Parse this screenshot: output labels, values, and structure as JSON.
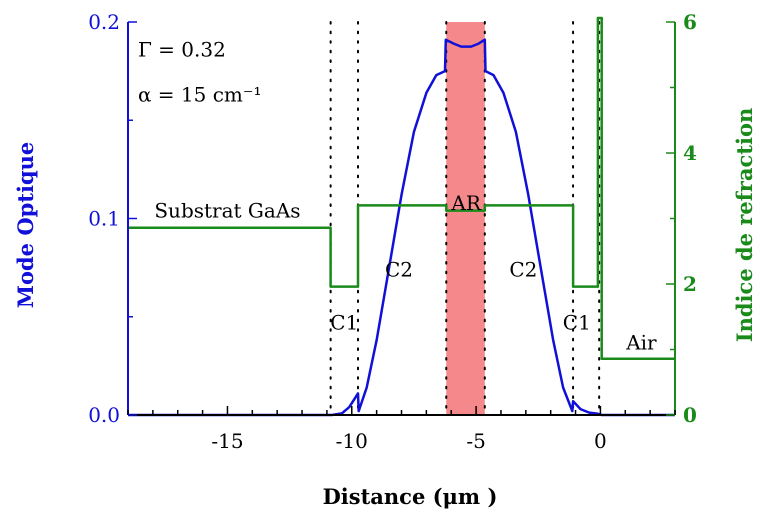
{
  "chart_data": {
    "type": "line",
    "title": "",
    "xlabel": "Distance (μm )",
    "ylabel_left": "Mode Optique",
    "ylabel_right": "Indice de refraction",
    "xlim": [
      -19,
      3
    ],
    "ylim_left": [
      0,
      0.2
    ],
    "ylim_right": [
      0,
      6
    ],
    "x_ticks": [
      {
        "value": -15,
        "label": "-15"
      },
      {
        "value": -10,
        "label": "-10"
      },
      {
        "value": -5,
        "label": "-5"
      },
      {
        "value": 0,
        "label": "0"
      }
    ],
    "y_left_ticks": [
      {
        "value": 0.0,
        "label": "0.0"
      },
      {
        "value": 0.1,
        "label": "0.1"
      },
      {
        "value": 0.2,
        "label": "0.2"
      }
    ],
    "y_right_ticks": [
      {
        "value": 0,
        "label": "0"
      },
      {
        "value": 2,
        "label": "2"
      },
      {
        "value": 4,
        "label": "4"
      },
      {
        "value": 6,
        "label": "6"
      }
    ],
    "series": [
      {
        "axis": "left",
        "color": "#1010d8",
        "points": [
          [
            -19,
            0
          ],
          [
            -12,
            0
          ],
          [
            -10.8,
            0
          ],
          [
            -10.4,
            0.0008
          ],
          [
            -10.1,
            0.004
          ],
          [
            -9.75,
            0.011
          ],
          [
            -9.72,
            0.002
          ],
          [
            -9.4,
            0.014
          ],
          [
            -9.0,
            0.038
          ],
          [
            -8.5,
            0.075
          ],
          [
            -8.0,
            0.112
          ],
          [
            -7.5,
            0.144
          ],
          [
            -7.0,
            0.164
          ],
          [
            -6.6,
            0.173
          ],
          [
            -6.25,
            0.175
          ],
          [
            -6.22,
            0.191
          ],
          [
            -5.9,
            0.189
          ],
          [
            -5.6,
            0.1875
          ],
          [
            -5.2,
            0.1875
          ],
          [
            -4.9,
            0.189
          ],
          [
            -4.65,
            0.191
          ],
          [
            -4.62,
            0.175
          ],
          [
            -4.3,
            0.173
          ],
          [
            -3.9,
            0.164
          ],
          [
            -3.4,
            0.144
          ],
          [
            -2.9,
            0.112
          ],
          [
            -2.4,
            0.075
          ],
          [
            -1.9,
            0.038
          ],
          [
            -1.5,
            0.014
          ],
          [
            -1.13,
            0.002
          ],
          [
            -1.1,
            0.007
          ],
          [
            -0.8,
            0.003
          ],
          [
            -0.45,
            0.0012
          ],
          [
            -0.1,
            0.0006
          ],
          [
            0.05,
            0
          ],
          [
            3,
            0
          ]
        ]
      },
      {
        "axis": "right",
        "color": "#1a8a1a",
        "points": [
          [
            -19,
            2.86
          ],
          [
            -10.85,
            2.86
          ],
          [
            -10.85,
            1.96
          ],
          [
            -9.75,
            1.96
          ],
          [
            -9.75,
            3.2
          ],
          [
            -6.2,
            3.2
          ],
          [
            -6.2,
            3.12
          ],
          [
            -4.65,
            3.12
          ],
          [
            -4.65,
            3.2
          ],
          [
            -1.1,
            3.2
          ],
          [
            -1.1,
            1.96
          ],
          [
            -0.1,
            1.96
          ],
          [
            -0.1,
            6.2
          ],
          [
            0.05,
            6.2
          ],
          [
            0.05,
            0.86
          ],
          [
            3,
            0.86
          ]
        ]
      }
    ],
    "vertical_lines": [
      -10.85,
      -9.75,
      -6.2,
      -4.65,
      -1.1,
      -0.05
    ],
    "active_region": {
      "x0": -6.2,
      "x1": -4.65,
      "color": "#f5888a"
    },
    "annotations": [
      {
        "text": "Γ = 0.32",
        "x": -18.6,
        "y_left": 0.186
      },
      {
        "text": "α = 15 cm⁻¹",
        "x": -18.6,
        "y_left": 0.163
      },
      {
        "text": "Substrat GaAs",
        "x": -15.0,
        "y_left": 0.104
      },
      {
        "text": "AR",
        "x": -5.4,
        "y_left": 0.108
      },
      {
        "text": "C2",
        "x": -8.1,
        "y_left": 0.074
      },
      {
        "text": "C2",
        "x": -3.1,
        "y_left": 0.074
      },
      {
        "text": "C1",
        "x": -10.3,
        "y_left": 0.047
      },
      {
        "text": "C1",
        "x": -0.95,
        "y_left": 0.047
      },
      {
        "text": "Air",
        "x": 1.65,
        "y_left": 0.037
      }
    ]
  }
}
